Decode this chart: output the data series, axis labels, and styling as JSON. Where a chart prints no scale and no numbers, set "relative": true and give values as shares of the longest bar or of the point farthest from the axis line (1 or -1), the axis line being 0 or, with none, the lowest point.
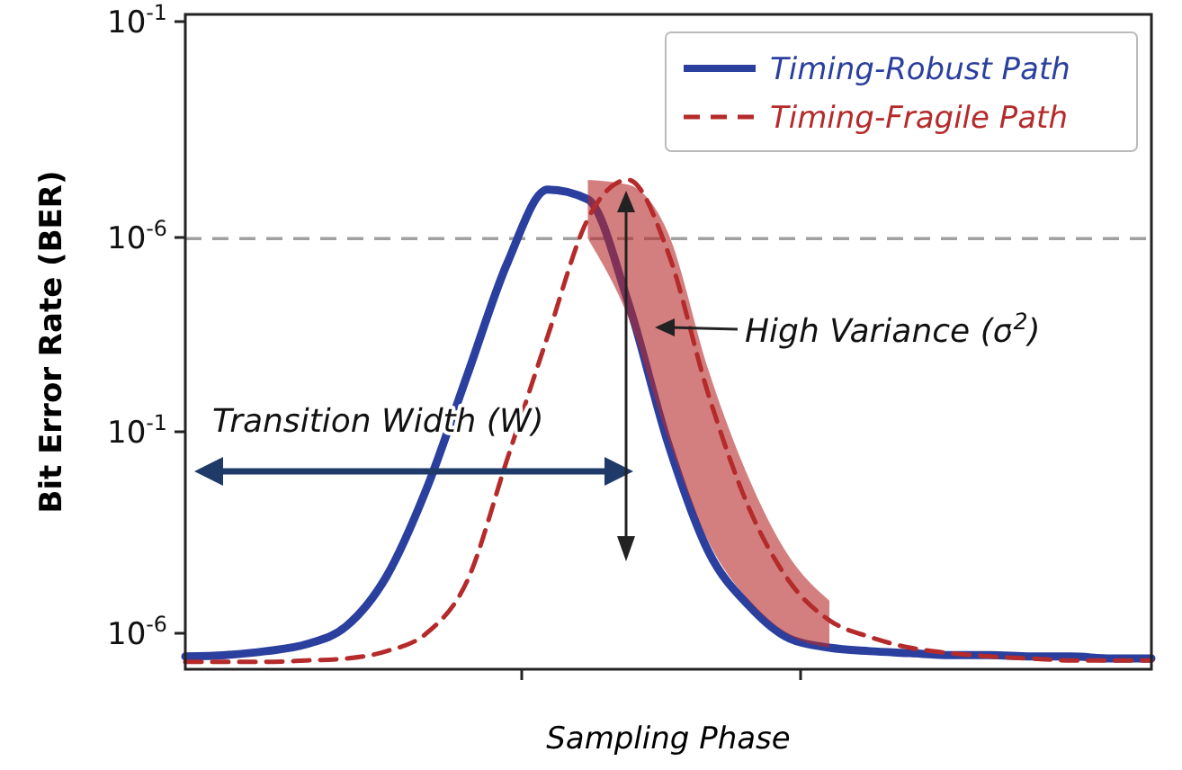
{
  "chart_data": {
    "type": "line",
    "relative": true,
    "xlabel": "Sampling Phase",
    "ylabel": "Bit Error Rate (BER)",
    "categories": [
      null,
      null,
      null,
      null,
      null,
      null,
      null,
      null,
      null,
      null,
      null,
      null,
      null,
      null,
      null,
      null,
      null,
      null,
      null,
      null,
      null,
      null,
      null,
      null,
      null
    ],
    "series": [
      {
        "name": "Timing-Robust Path",
        "color": "#2b3f9e",
        "line_style": "solid",
        "values": [
          0.026,
          0.029,
          0.037,
          0.051,
          0.088,
          0.19,
          0.37,
          0.6,
          0.83,
          0.98,
          0.96,
          0.75,
          0.46,
          0.24,
          0.13,
          0.063,
          0.044,
          0.037,
          0.033,
          0.029,
          0.029,
          0.026,
          0.026,
          0.022,
          0.022
        ]
      },
      {
        "name": "Timing-Fragile Path",
        "color": "#b52a2a",
        "line_style": "dashed",
        "values": [
          0.015,
          0.015,
          0.015,
          0.018,
          0.022,
          0.037,
          0.074,
          0.18,
          0.43,
          0.68,
          0.92,
          1,
          0.85,
          0.56,
          0.33,
          0.18,
          0.1,
          0.066,
          0.044,
          0.033,
          0.026,
          0.022,
          0.018,
          0.018,
          0.018
        ],
        "lower": [
          null,
          null,
          null,
          null,
          null,
          null,
          null,
          null,
          null,
          null,
          0.88,
          0.72,
          0.47,
          0.26,
          0.14,
          0.07,
          0.044,
          null,
          null,
          null,
          null,
          null,
          null,
          null,
          null
        ],
        "upper": [
          null,
          null,
          null,
          null,
          null,
          null,
          null,
          null,
          null,
          null,
          1,
          0.99,
          0.89,
          0.61,
          0.39,
          0.23,
          0.14,
          null,
          null,
          null,
          null,
          null,
          null,
          null,
          null
        ]
      }
    ],
    "ref_lines": [
      {
        "axis": "y",
        "value": 0.88,
        "color": "#a0a0a0",
        "line_style": "dashed"
      }
    ],
    "annotations": [
      "Transition Width (W)",
      "High Variance (σ$^{2}$)",
      "10$^{-6}$",
      "10$^{-1}$",
      "10$^{-6}$",
      "10$^{-1}$"
    ],
    "legend": "top right",
    "marker": "none"
  }
}
